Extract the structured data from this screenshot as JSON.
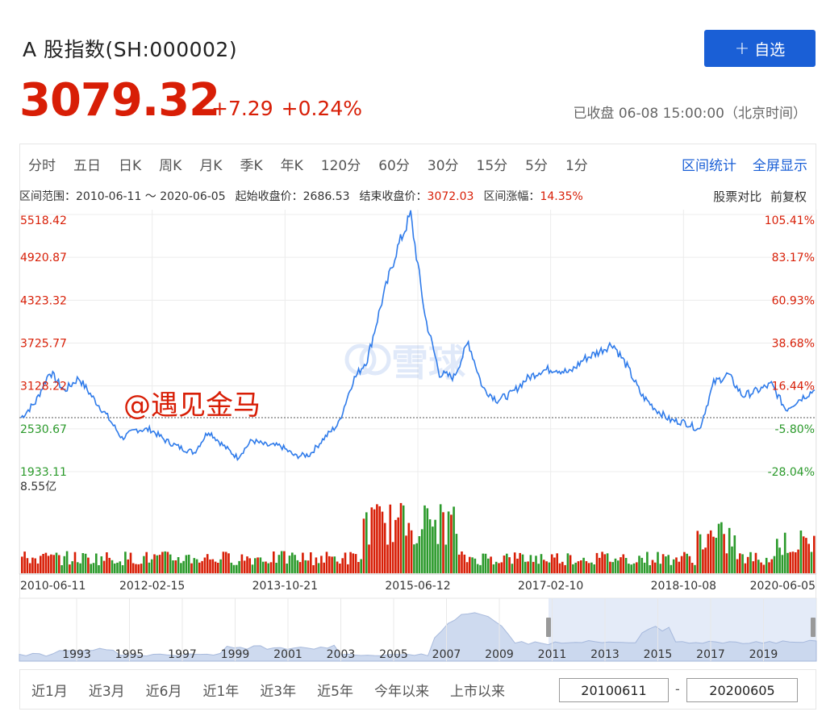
{
  "header": {
    "title": "A 股指数(SH:000002)",
    "follow_icon": "+",
    "follow_label": "自选",
    "price": "3079.32",
    "change": "+7.29",
    "change_pct": "+0.24%",
    "status": "已收盘 06-08 15:00:00（北京时间）"
  },
  "tabs": [
    "分时",
    "五日",
    "日K",
    "周K",
    "月K",
    "季K",
    "年K",
    "120分",
    "60分",
    "30分",
    "15分",
    "5分",
    "1分"
  ],
  "tools": [
    "区间统计",
    "全屏显示"
  ],
  "info": {
    "range_label": "区间范围：",
    "range_value": "2010-06-11 ～ 2020-06-05",
    "start_label": "起始收盘价：",
    "start_value": "2686.53",
    "end_label": "结束收盘价：",
    "end_value": "3072.03",
    "chg_label": "区间涨幅：",
    "chg_value": "14.35%",
    "compare": "股票对比",
    "adjust": "前复权"
  },
  "watermark": "@遇见金马",
  "logo_text": "雪球",
  "volume_label": "8.55亿",
  "colors": {
    "up": "#d81e06",
    "down": "#2b9a2b",
    "line": "#2f7bea",
    "accent": "#1a5fd6"
  },
  "chart_data": {
    "type": "line",
    "y_ticks": [
      "5518.42",
      "4920.87",
      "4323.32",
      "3725.77",
      "3128.22",
      "2530.67",
      "1933.11"
    ],
    "y_pct_ticks": [
      "105.41%",
      "83.17%",
      "60.93%",
      "38.68%",
      "16.44%",
      "-5.80%",
      "-28.04%"
    ],
    "ylim": [
      1933.11,
      5518.42
    ],
    "base_close": 2686.53,
    "x_ticks": [
      "2010-06-11",
      "2012-02-15",
      "2013-10-21",
      "2015-06-12",
      "2017-02-10",
      "2018-10-08",
      "2020-06-05"
    ],
    "x": [
      "2010-06",
      "2010-09",
      "2010-11",
      "2011-01",
      "2011-04",
      "2011-07",
      "2011-10",
      "2012-01",
      "2012-03",
      "2012-05",
      "2012-08",
      "2012-10",
      "2012-12",
      "2013-02",
      "2013-04",
      "2013-06",
      "2013-08",
      "2013-10",
      "2013-12",
      "2014-03",
      "2014-06",
      "2014-09",
      "2014-11",
      "2014-12",
      "2015-02",
      "2015-04",
      "2015-05",
      "2015-06",
      "2015-07",
      "2015-08",
      "2015-09",
      "2015-12",
      "2016-01",
      "2016-02",
      "2016-05",
      "2016-08",
      "2016-11",
      "2017-03",
      "2017-06",
      "2017-09",
      "2017-11",
      "2018-01",
      "2018-03",
      "2018-06",
      "2018-08",
      "2018-10",
      "2018-12",
      "2019-01",
      "2019-03",
      "2019-04",
      "2019-06",
      "2019-09",
      "2019-12",
      "2020-02",
      "2020-04",
      "2020-06"
    ],
    "values": [
      2686,
      2900,
      3330,
      3060,
      3240,
      2960,
      2700,
      2400,
      2520,
      2520,
      2370,
      2270,
      2200,
      2500,
      2300,
      2130,
      2370,
      2300,
      2290,
      2150,
      2170,
      2400,
      2600,
      3200,
      3500,
      4300,
      5000,
      5518,
      4100,
      3300,
      3250,
      3740,
      3100,
      2930,
      3020,
      3220,
      3340,
      3370,
      3310,
      3500,
      3600,
      3720,
      3400,
      3000,
      2800,
      2650,
      2620,
      2520,
      3170,
      3290,
      2990,
      3060,
      3150,
      2800,
      2950,
      3072
    ],
    "volume": {
      "max_label": "8.55亿",
      "note": "daily volume bars, red = up day, green = down day"
    },
    "navigator": {
      "x_ticks": [
        "1993",
        "1995",
        "1997",
        "1999",
        "2001",
        "2003",
        "2005",
        "2007",
        "2009",
        "2011",
        "2013",
        "2015",
        "2017",
        "2019"
      ],
      "selected_range": [
        "2010-06-11",
        "2020-06-05"
      ]
    }
  },
  "range_bar": {
    "buttons": [
      "近1月",
      "近3月",
      "近6月",
      "近1年",
      "近3年",
      "近5年",
      "今年以来",
      "上市以来"
    ],
    "start_date": "20100611",
    "end_date": "20200605",
    "separator": "-"
  }
}
